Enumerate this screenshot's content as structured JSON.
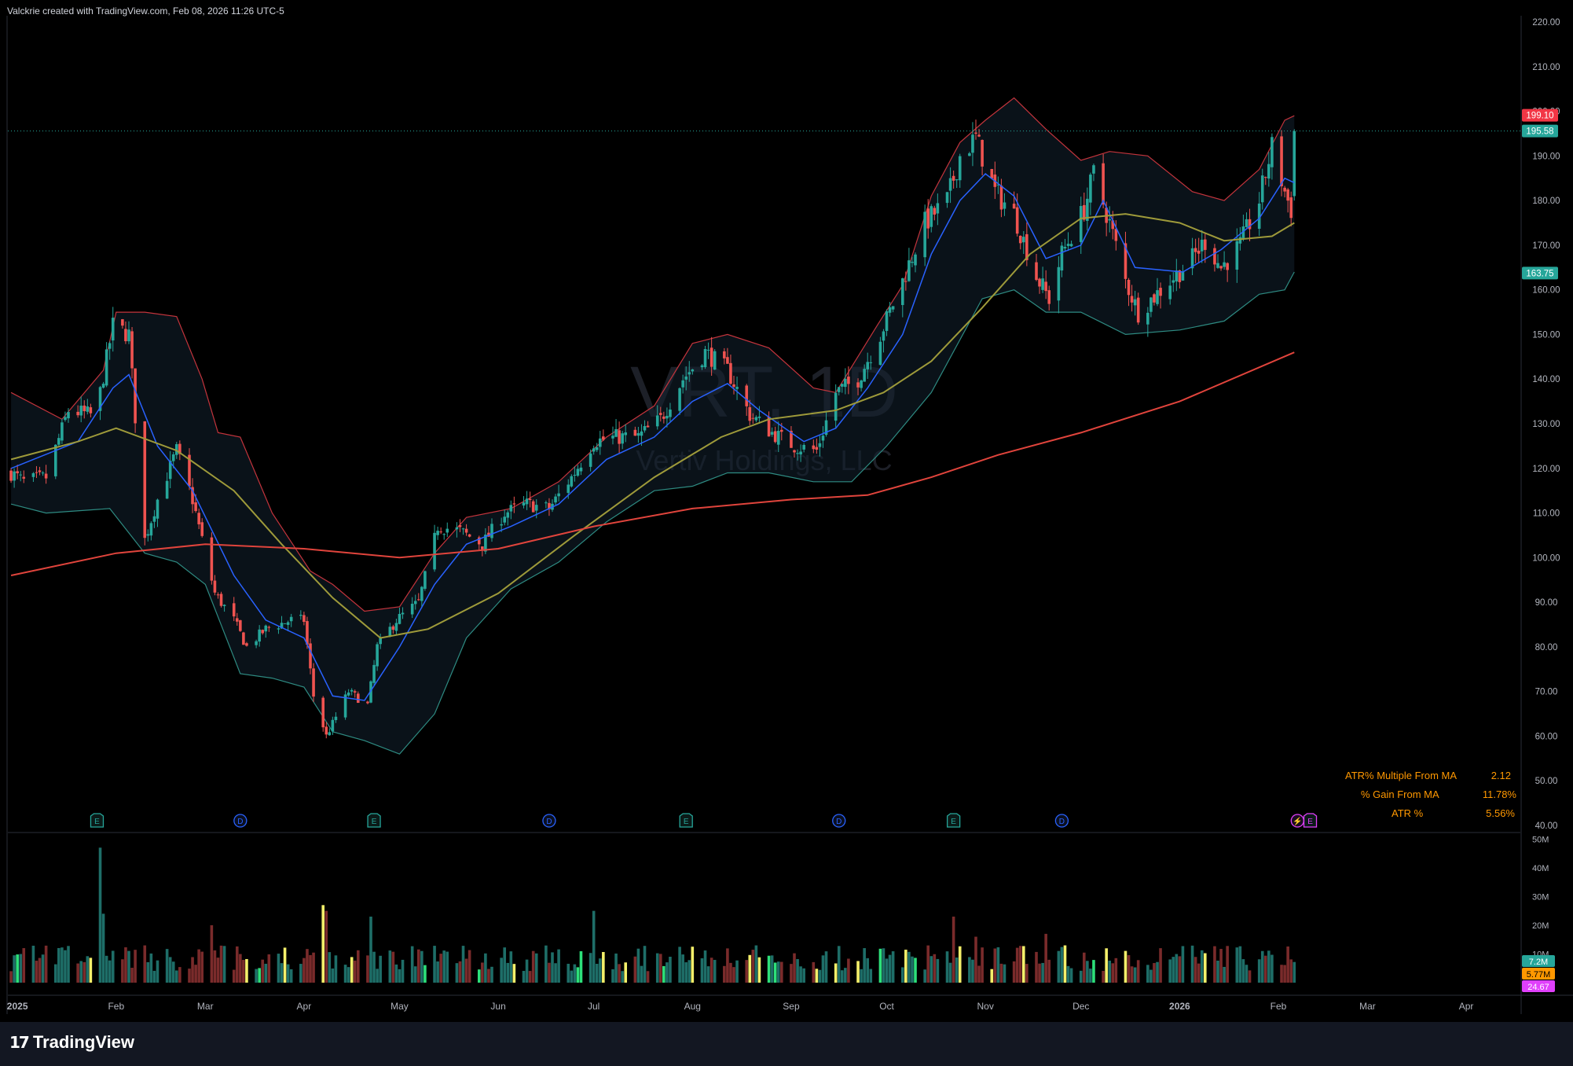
{
  "header": {
    "text": "Valckrie created with TradingView.com, Feb 08, 2026 11:26 UTC-5"
  },
  "watermark": {
    "symbol": "VRT, 1D",
    "name": "Vertiv Holdings, LLC"
  },
  "footer": {
    "logo_text": "TradingView",
    "logo_icon": "tradingview-logo-icon"
  },
  "colors": {
    "background": "#000000",
    "up": "#26a69a",
    "down": "#ef5350",
    "ma_blue": "#2962ff",
    "ma_olive": "#9e9a3a",
    "ma_red": "#e0443c",
    "band": "#2a3f5c",
    "stats": "#ff9800"
  },
  "stats_table": [
    {
      "label": "ATR% Multiple From MA",
      "value": "2.12"
    },
    {
      "label": "% Gain From MA",
      "value": "11.78%"
    },
    {
      "label": "ATR %",
      "value": "5.56%"
    }
  ],
  "event_markers": [
    {
      "letter": "E",
      "date": "2025-01-26",
      "color": "#26a69a",
      "icon": "earnings-icon"
    },
    {
      "letter": "D",
      "date": "2025-03-12",
      "color": "#2962ff",
      "icon": "dividend-icon"
    },
    {
      "letter": "E",
      "date": "2025-04-23",
      "color": "#26a69a",
      "icon": "earnings-icon"
    },
    {
      "letter": "D",
      "date": "2025-06-17",
      "color": "#2962ff",
      "icon": "dividend-icon"
    },
    {
      "letter": "E",
      "date": "2025-07-30",
      "color": "#26a69a",
      "icon": "earnings-icon"
    },
    {
      "letter": "D",
      "date": "2025-09-16",
      "color": "#2962ff",
      "icon": "dividend-icon"
    },
    {
      "letter": "E",
      "date": "2025-10-22",
      "color": "#26a69a",
      "icon": "earnings-icon"
    },
    {
      "letter": "D",
      "date": "2025-11-25",
      "color": "#2962ff",
      "icon": "dividend-icon"
    },
    {
      "letter": "⚡",
      "date": "2026-02-07",
      "color": "#e040fb",
      "icon": "split-icon"
    },
    {
      "letter": "E",
      "date": "2026-02-11",
      "color": "#e040fb",
      "icon": "earnings-icon"
    }
  ],
  "chart_data": {
    "type": "candlestick",
    "title": "",
    "timeframe": "1D",
    "x_range": [
      "2024-12-29",
      "2026-04-18"
    ],
    "y_range": [
      40,
      220
    ],
    "grid": false,
    "x_ticks": [
      {
        "label": "2025",
        "date": "2025-01-01"
      },
      {
        "label": "Feb",
        "date": "2025-02-01"
      },
      {
        "label": "Mar",
        "date": "2025-03-01"
      },
      {
        "label": "Apr",
        "date": "2025-04-01"
      },
      {
        "label": "May",
        "date": "2025-05-01"
      },
      {
        "label": "Jun",
        "date": "2025-06-01"
      },
      {
        "label": "Jul",
        "date": "2025-07-01"
      },
      {
        "label": "Aug",
        "date": "2025-08-01"
      },
      {
        "label": "Sep",
        "date": "2025-09-01"
      },
      {
        "label": "Oct",
        "date": "2025-10-01"
      },
      {
        "label": "Nov",
        "date": "2025-11-01"
      },
      {
        "label": "Dec",
        "date": "2025-12-01"
      },
      {
        "label": "2026",
        "date": "2026-01-01"
      },
      {
        "label": "Feb",
        "date": "2026-02-01"
      },
      {
        "label": "Mar",
        "date": "2026-03-01"
      },
      {
        "label": "Apr",
        "date": "2026-04-01"
      }
    ],
    "y_ticks": [
      "40.00",
      "50.00",
      "60.00",
      "70.00",
      "80.00",
      "90.00",
      "100.00",
      "110.00",
      "120.00",
      "130.00",
      "140.00",
      "150.00",
      "160.00",
      "170.00",
      "180.00",
      "190.00",
      "200.00",
      "210.00",
      "220.00"
    ],
    "price_labels": [
      {
        "value": 199.1,
        "text": "199.10",
        "color": "#f23645"
      },
      {
        "value": 195.58,
        "text": "195.58",
        "color": "#26a69a"
      },
      {
        "value": 163.75,
        "text": "163.75",
        "color": "#26a69a"
      }
    ],
    "last_price": 195.58,
    "close_anchors": [
      [
        "2024-12-30",
        119
      ],
      [
        "2025-01-03",
        117
      ],
      [
        "2025-01-10",
        118
      ],
      [
        "2025-01-17",
        133
      ],
      [
        "2025-01-24",
        132
      ],
      [
        "2025-01-27",
        137
      ],
      [
        "2025-01-31",
        152
      ],
      [
        "2025-02-05",
        150
      ],
      [
        "2025-02-10",
        104
      ],
      [
        "2025-02-14",
        113
      ],
      [
        "2025-02-20",
        124
      ],
      [
        "2025-02-25",
        113
      ],
      [
        "2025-03-04",
        92
      ],
      [
        "2025-03-10",
        86
      ],
      [
        "2025-03-14",
        80
      ],
      [
        "2025-03-20",
        84
      ],
      [
        "2025-03-28",
        86
      ],
      [
        "2025-04-01",
        86
      ],
      [
        "2025-04-04",
        69
      ],
      [
        "2025-04-08",
        60
      ],
      [
        "2025-04-15",
        70
      ],
      [
        "2025-04-21",
        67
      ],
      [
        "2025-04-24",
        80
      ],
      [
        "2025-04-30",
        86
      ],
      [
        "2025-05-07",
        90
      ],
      [
        "2025-05-13",
        107
      ],
      [
        "2025-05-20",
        106
      ],
      [
        "2025-05-27",
        103
      ],
      [
        "2025-06-03",
        110
      ],
      [
        "2025-06-10",
        112
      ],
      [
        "2025-06-17",
        111
      ],
      [
        "2025-06-24",
        118
      ],
      [
        "2025-07-01",
        126
      ],
      [
        "2025-07-08",
        127
      ],
      [
        "2025-07-15",
        127
      ],
      [
        "2025-07-22",
        131
      ],
      [
        "2025-07-29",
        140
      ],
      [
        "2025-08-05",
        146
      ],
      [
        "2025-08-12",
        142
      ],
      [
        "2025-08-19",
        132
      ],
      [
        "2025-08-26",
        128
      ],
      [
        "2025-09-02",
        125
      ],
      [
        "2025-09-09",
        124
      ],
      [
        "2025-09-15",
        137
      ],
      [
        "2025-09-22",
        140
      ],
      [
        "2025-09-29",
        150
      ],
      [
        "2025-10-06",
        162
      ],
      [
        "2025-10-13",
        175
      ],
      [
        "2025-10-20",
        180
      ],
      [
        "2025-10-24",
        190
      ],
      [
        "2025-10-29",
        194
      ],
      [
        "2025-11-04",
        182
      ],
      [
        "2025-11-10",
        177
      ],
      [
        "2025-11-17",
        163
      ],
      [
        "2025-11-21",
        158
      ],
      [
        "2025-11-25",
        168
      ],
      [
        "2025-12-02",
        178
      ],
      [
        "2025-12-05",
        186
      ],
      [
        "2025-12-10",
        175
      ],
      [
        "2025-12-15",
        162
      ],
      [
        "2025-12-19",
        155
      ],
      [
        "2026-01-05",
        167
      ],
      [
        "2026-01-09",
        171
      ],
      [
        "2026-01-14",
        165
      ],
      [
        "2026-01-20",
        170
      ],
      [
        "2026-01-26",
        180
      ],
      [
        "2026-01-30",
        192
      ],
      [
        "2026-02-03",
        182
      ],
      [
        "2026-02-05",
        178
      ],
      [
        "2026-02-06",
        195.58
      ]
    ],
    "moving_averages": [
      {
        "name": "",
        "color": "#2962ff",
        "width": 1.5,
        "points": [
          [
            "2024-12-30",
            120
          ],
          [
            "2025-01-20",
            126
          ],
          [
            "2025-01-31",
            138
          ],
          [
            "2025-02-05",
            141
          ],
          [
            "2025-02-14",
            125
          ],
          [
            "2025-02-25",
            115
          ],
          [
            "2025-03-10",
            96
          ],
          [
            "2025-03-20",
            86
          ],
          [
            "2025-04-01",
            82
          ],
          [
            "2025-04-10",
            69
          ],
          [
            "2025-04-20",
            68
          ],
          [
            "2025-05-01",
            80
          ],
          [
            "2025-05-12",
            94
          ],
          [
            "2025-05-22",
            103
          ],
          [
            "2025-06-05",
            107
          ],
          [
            "2025-06-20",
            112
          ],
          [
            "2025-07-05",
            122
          ],
          [
            "2025-07-20",
            127
          ],
          [
            "2025-08-01",
            135
          ],
          [
            "2025-08-12",
            139
          ],
          [
            "2025-08-22",
            133
          ],
          [
            "2025-09-05",
            126
          ],
          [
            "2025-09-15",
            129
          ],
          [
            "2025-09-25",
            138
          ],
          [
            "2025-10-06",
            150
          ],
          [
            "2025-10-15",
            168
          ],
          [
            "2025-10-24",
            180
          ],
          [
            "2025-11-01",
            186
          ],
          [
            "2025-11-10",
            181
          ],
          [
            "2025-11-20",
            167
          ],
          [
            "2025-12-01",
            170
          ],
          [
            "2025-12-08",
            180
          ],
          [
            "2025-12-18",
            165
          ],
          [
            "2026-01-02",
            164
          ],
          [
            "2026-01-14",
            169
          ],
          [
            "2026-01-26",
            176
          ],
          [
            "2026-02-03",
            185
          ],
          [
            "2026-02-06",
            184
          ]
        ]
      },
      {
        "name": "",
        "color": "#9e9a3a",
        "width": 2,
        "points": [
          [
            "2024-12-30",
            122
          ],
          [
            "2025-01-20",
            126
          ],
          [
            "2025-02-01",
            129
          ],
          [
            "2025-02-20",
            124
          ],
          [
            "2025-03-10",
            115
          ],
          [
            "2025-03-25",
            103
          ],
          [
            "2025-04-10",
            91
          ],
          [
            "2025-04-25",
            82
          ],
          [
            "2025-05-10",
            84
          ],
          [
            "2025-06-01",
            92
          ],
          [
            "2025-06-25",
            105
          ],
          [
            "2025-07-20",
            118
          ],
          [
            "2025-08-10",
            127
          ],
          [
            "2025-08-25",
            131
          ],
          [
            "2025-09-15",
            133
          ],
          [
            "2025-09-30",
            137
          ],
          [
            "2025-10-15",
            144
          ],
          [
            "2025-10-31",
            156
          ],
          [
            "2025-11-15",
            168
          ],
          [
            "2025-12-01",
            176
          ],
          [
            "2025-12-15",
            177
          ],
          [
            "2026-01-01",
            175
          ],
          [
            "2026-01-15",
            171
          ],
          [
            "2026-01-30",
            172
          ],
          [
            "2026-02-06",
            175
          ]
        ]
      },
      {
        "name": "",
        "color": "#e0443c",
        "width": 2,
        "points": [
          [
            "2024-12-30",
            96
          ],
          [
            "2025-02-01",
            101
          ],
          [
            "2025-03-01",
            103
          ],
          [
            "2025-04-01",
            102
          ],
          [
            "2025-05-01",
            100
          ],
          [
            "2025-06-01",
            102
          ],
          [
            "2025-07-01",
            107
          ],
          [
            "2025-08-01",
            111
          ],
          [
            "2025-09-01",
            113
          ],
          [
            "2025-09-25",
            114
          ],
          [
            "2025-10-15",
            118
          ],
          [
            "2025-11-05",
            123
          ],
          [
            "2025-12-01",
            128
          ],
          [
            "2026-01-01",
            135
          ],
          [
            "2026-02-06",
            146
          ]
        ]
      }
    ],
    "bollinger_upper": [
      [
        "2024-12-30",
        137
      ],
      [
        "2025-01-15",
        131
      ],
      [
        "2025-01-28",
        142
      ],
      [
        "2025-02-01",
        155
      ],
      [
        "2025-02-10",
        155
      ],
      [
        "2025-02-20",
        154
      ],
      [
        "2025-02-28",
        140
      ],
      [
        "2025-03-05",
        128
      ],
      [
        "2025-03-12",
        127
      ],
      [
        "2025-03-22",
        110
      ],
      [
        "2025-04-03",
        97
      ],
      [
        "2025-04-10",
        94
      ],
      [
        "2025-04-20",
        88
      ],
      [
        "2025-05-01",
        89
      ],
      [
        "2025-05-12",
        101
      ],
      [
        "2025-05-22",
        109
      ],
      [
        "2025-06-05",
        111
      ],
      [
        "2025-06-20",
        117
      ],
      [
        "2025-07-05",
        127
      ],
      [
        "2025-07-20",
        134
      ],
      [
        "2025-08-01",
        148
      ],
      [
        "2025-08-12",
        150
      ],
      [
        "2025-08-25",
        147
      ],
      [
        "2025-09-08",
        138
      ],
      [
        "2025-09-15",
        137
      ],
      [
        "2025-09-28",
        152
      ],
      [
        "2025-10-06",
        161
      ],
      [
        "2025-10-15",
        181
      ],
      [
        "2025-10-24",
        193
      ],
      [
        "2025-11-01",
        198
      ],
      [
        "2025-11-10",
        203
      ],
      [
        "2025-11-20",
        196
      ],
      [
        "2025-12-01",
        189
      ],
      [
        "2025-12-10",
        191
      ],
      [
        "2025-12-22",
        190
      ],
      [
        "2026-01-05",
        182
      ],
      [
        "2026-01-15",
        180
      ],
      [
        "2026-01-26",
        187
      ],
      [
        "2026-02-03",
        198
      ],
      [
        "2026-02-06",
        199
      ]
    ],
    "bollinger_lower": [
      [
        "2024-12-30",
        112
      ],
      [
        "2025-01-10",
        110
      ],
      [
        "2025-01-30",
        111
      ],
      [
        "2025-02-10",
        101
      ],
      [
        "2025-02-20",
        99
      ],
      [
        "2025-03-01",
        94
      ],
      [
        "2025-03-12",
        74
      ],
      [
        "2025-03-22",
        73
      ],
      [
        "2025-04-01",
        71
      ],
      [
        "2025-04-10",
        61
      ],
      [
        "2025-04-20",
        59
      ],
      [
        "2025-05-01",
        56
      ],
      [
        "2025-05-12",
        65
      ],
      [
        "2025-05-22",
        82
      ],
      [
        "2025-06-05",
        93
      ],
      [
        "2025-06-20",
        99
      ],
      [
        "2025-07-05",
        108
      ],
      [
        "2025-07-20",
        115
      ],
      [
        "2025-08-01",
        116
      ],
      [
        "2025-08-12",
        119
      ],
      [
        "2025-08-25",
        119
      ],
      [
        "2025-09-08",
        117
      ],
      [
        "2025-09-20",
        117
      ],
      [
        "2025-10-01",
        125
      ],
      [
        "2025-10-15",
        137
      ],
      [
        "2025-10-31",
        158
      ],
      [
        "2025-11-10",
        160
      ],
      [
        "2025-11-20",
        155
      ],
      [
        "2025-12-01",
        155
      ],
      [
        "2025-12-15",
        150
      ],
      [
        "2026-01-01",
        151
      ],
      [
        "2026-01-15",
        153
      ],
      [
        "2026-01-26",
        159
      ],
      [
        "2026-02-03",
        160
      ],
      [
        "2026-02-06",
        164
      ]
    ],
    "volume": {
      "y_ticks": [
        "50M",
        "40M",
        "30M",
        "20M",
        "10M"
      ],
      "y_max": 52,
      "labels": [
        {
          "text": "7.2M",
          "color": "#26a69a"
        },
        {
          "text": "5.77M",
          "color": "#ff9800"
        },
        {
          "text": "24.67",
          "color": "#e040fb"
        }
      ],
      "spikes": [
        [
          "2025-01-27",
          47
        ],
        [
          "2025-01-28",
          24
        ],
        [
          "2025-03-03",
          20
        ],
        [
          "2025-04-07",
          27
        ],
        [
          "2025-04-08",
          25
        ],
        [
          "2025-04-22",
          23
        ],
        [
          "2025-07-01",
          25
        ],
        [
          "2025-10-22",
          23
        ],
        [
          "2025-10-29",
          16
        ],
        [
          "2025-11-20",
          17
        ]
      ]
    }
  }
}
